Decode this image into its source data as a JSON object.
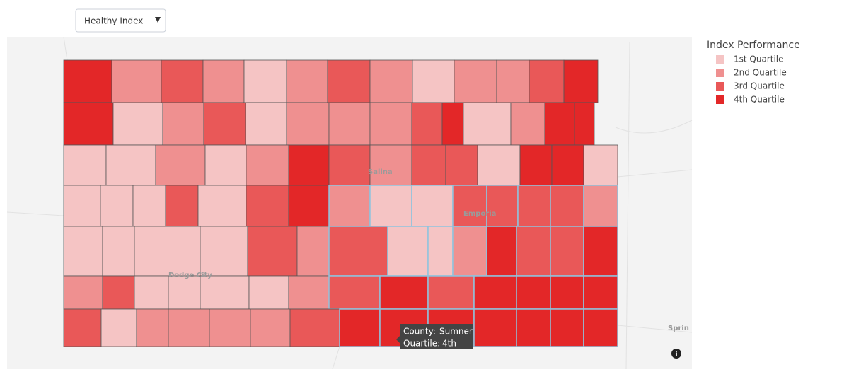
{
  "dropdown": {
    "label": "Healthy Index"
  },
  "legend": {
    "title": "Index Performance",
    "items": [
      {
        "label": "1st Quartile",
        "color": "#f5c4c4"
      },
      {
        "label": "2nd Quartile",
        "color": "#ef9090"
      },
      {
        "label": "3rd Quartile",
        "color": "#e95858"
      },
      {
        "label": "4th Quartile",
        "color": "#e32728"
      }
    ]
  },
  "counties": {
    "quartiles": [
      4,
      2,
      3,
      2,
      1,
      2,
      3,
      2,
      1,
      2,
      2,
      3,
      4,
      4,
      1,
      2,
      3,
      1,
      2,
      2,
      2,
      3,
      4,
      1,
      2,
      4,
      4,
      1,
      1,
      2,
      1,
      2,
      4,
      3,
      2,
      3,
      3,
      1,
      4,
      4,
      1,
      1,
      1,
      1,
      3,
      1,
      3,
      4,
      2,
      1,
      1,
      3,
      3,
      3,
      3,
      2,
      1,
      1,
      1,
      1,
      3,
      2,
      3,
      1,
      1,
      2,
      4,
      3,
      3,
      4,
      2,
      3,
      1,
      1,
      1,
      1,
      2,
      3,
      4,
      3,
      4,
      4,
      4,
      4,
      3,
      1,
      2,
      2,
      2,
      2,
      3,
      4,
      4,
      4,
      4,
      4,
      4,
      4
    ]
  },
  "places": [
    "Salina",
    "Emporia",
    "Dodge City",
    "Sprin"
  ],
  "tooltip": {
    "lines": [
      {
        "key": "County:",
        "value": "Sumner"
      },
      {
        "key": "Quartile:",
        "value": "4th"
      }
    ]
  }
}
